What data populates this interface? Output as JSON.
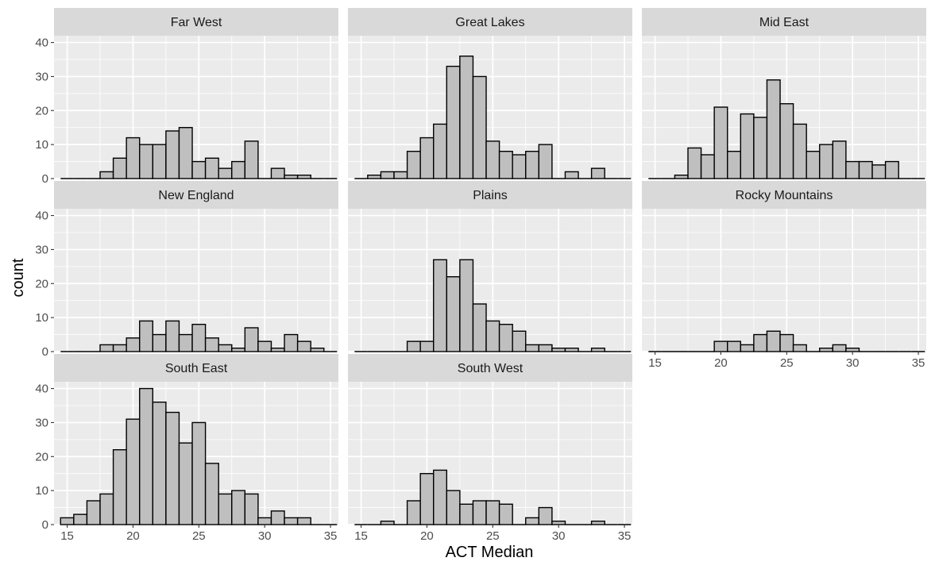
{
  "chart_data": {
    "type": "bar",
    "chart_kind": "faceted histogram",
    "xlabel": "ACT Median",
    "ylabel": "count",
    "xlim": [
      14,
      35.6
    ],
    "ylim": [
      0,
      42
    ],
    "x_ticks": [
      15,
      20,
      25,
      30,
      35
    ],
    "y_ticks": [
      0,
      10,
      20,
      30,
      40
    ],
    "bin_width": 1,
    "bins": [
      14.5,
      15.5,
      16.5,
      17.5,
      18.5,
      19.5,
      20.5,
      21.5,
      22.5,
      23.5,
      24.5,
      25.5,
      26.5,
      27.5,
      28.5,
      29.5,
      30.5,
      31.5,
      32.5,
      33.5,
      34.5
    ],
    "grid": true,
    "bar_fill": "#bfbfbf",
    "bar_outline": "#000000",
    "panel_background": "#ebebeb",
    "strip_background": "#d9d9d9",
    "facets": [
      {
        "name": "Far West",
        "values": [
          0,
          0,
          0,
          2,
          6,
          12,
          10,
          10,
          14,
          15,
          5,
          6,
          3,
          5,
          11,
          0,
          3,
          1,
          1,
          0,
          0
        ]
      },
      {
        "name": "Great Lakes",
        "values": [
          0,
          1,
          2,
          2,
          8,
          12,
          16,
          33,
          36,
          30,
          11,
          8,
          7,
          8,
          10,
          0,
          2,
          0,
          3,
          0,
          0
        ]
      },
      {
        "name": "Mid East",
        "values": [
          0,
          0,
          1,
          9,
          7,
          21,
          8,
          19,
          18,
          29,
          22,
          16,
          8,
          10,
          11,
          5,
          5,
          4,
          5,
          0,
          0
        ]
      },
      {
        "name": "New England",
        "values": [
          0,
          0,
          0,
          2,
          2,
          4,
          9,
          5,
          9,
          5,
          8,
          4,
          2,
          1,
          7,
          3,
          1,
          5,
          3,
          1,
          0
        ]
      },
      {
        "name": "Plains",
        "values": [
          0,
          0,
          0,
          0,
          3,
          3,
          27,
          22,
          27,
          14,
          9,
          8,
          6,
          2,
          2,
          1,
          1,
          0,
          1,
          0,
          0
        ]
      },
      {
        "name": "Rocky Mountains",
        "values": [
          0,
          0,
          0,
          0,
          0,
          3,
          3,
          2,
          5,
          6,
          5,
          2,
          0,
          1,
          2,
          1,
          0,
          0,
          0,
          0,
          0
        ]
      },
      {
        "name": "South East",
        "values": [
          2,
          3,
          7,
          9,
          22,
          31,
          40,
          36,
          33,
          24,
          30,
          18,
          9,
          10,
          9,
          2,
          4,
          2,
          2,
          0,
          0
        ]
      },
      {
        "name": "South West",
        "values": [
          0,
          0,
          1,
          0,
          7,
          15,
          16,
          10,
          6,
          7,
          7,
          6,
          0,
          2,
          5,
          1,
          0,
          0,
          1,
          0,
          0
        ]
      }
    ]
  }
}
